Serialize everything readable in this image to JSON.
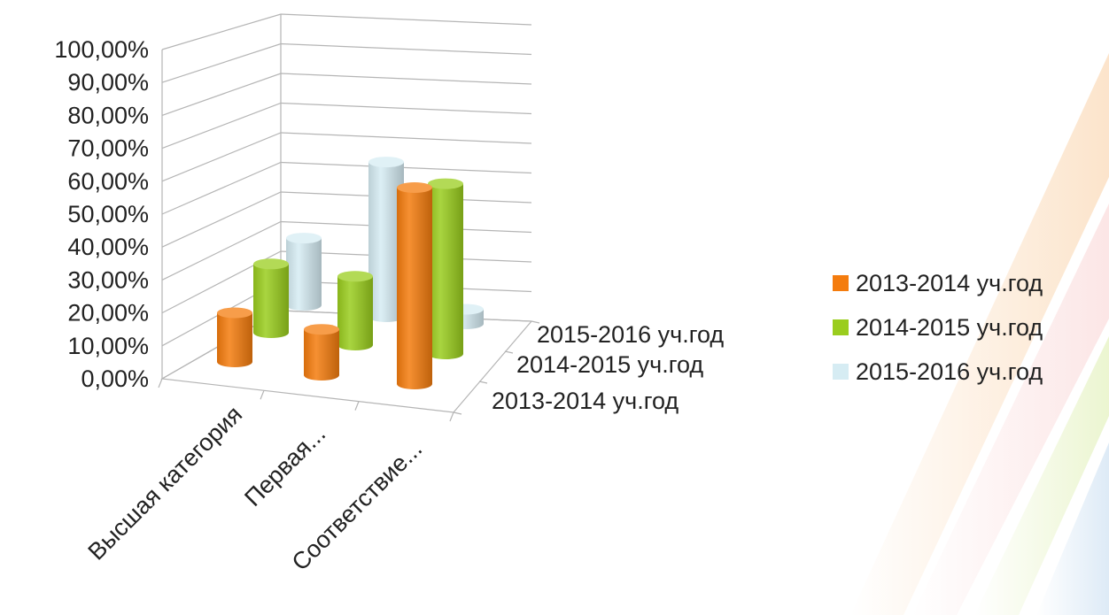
{
  "chart_data": {
    "type": "bar",
    "subtype": "3d-cylinder",
    "title": "",
    "xlabel": "",
    "ylabel": "",
    "ylim": [
      0,
      100
    ],
    "yticks": [
      "0,00%",
      "10,00%",
      "20,00%",
      "30,00%",
      "40,00%",
      "50,00%",
      "60,00%",
      "70,00%",
      "80,00%",
      "90,00%",
      "100,00%"
    ],
    "categories": [
      "Высшая категория",
      "Первая...",
      "Соответствие..."
    ],
    "series": [
      {
        "name": "2013-2014 уч.год",
        "color": "#f47c0e",
        "values": [
          15,
          14,
          60
        ]
      },
      {
        "name": "2014-2015 уч.год",
        "color": "#9acd1e",
        "values": [
          21,
          21,
          52
        ]
      },
      {
        "name": "2015-2016 уч.год",
        "color": "#d6ecf3",
        "values": [
          23,
          53,
          5
        ]
      }
    ],
    "grid": true,
    "legend_position": "right"
  }
}
